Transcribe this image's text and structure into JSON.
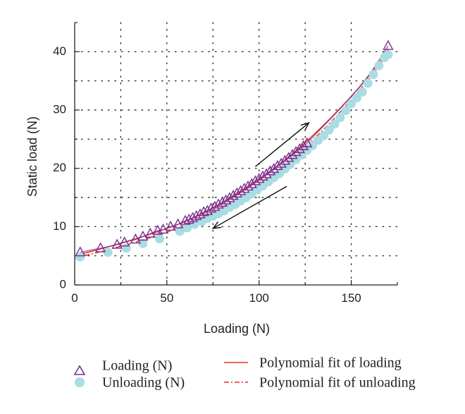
{
  "chart_data": {
    "type": "scatter",
    "xlabel": "Loading (N)",
    "ylabel": "Static load (N)",
    "xlim": [
      0,
      175
    ],
    "ylim": [
      0,
      45
    ],
    "x_ticks": [
      0,
      50,
      100,
      150
    ],
    "y_ticks": [
      0,
      10,
      20,
      30,
      40
    ],
    "grid": true,
    "grid_style": "dotted",
    "legend_position": "bottom",
    "colors": {
      "loading": "#7b2d8e",
      "unloading": "#a9dde3",
      "fit_loading": "#e8321e",
      "fit_unloading": "#e8321e",
      "axis": "#222222",
      "arrow": "#111111"
    },
    "series": [
      {
        "name": "Loading (N)",
        "kind": "scatter",
        "marker": "triangle-open",
        "points": [
          [
            3,
            5.6
          ],
          [
            14,
            6.3
          ],
          [
            23,
            6.9
          ],
          [
            27,
            7.3
          ],
          [
            33,
            7.8
          ],
          [
            37,
            8.3
          ],
          [
            41,
            8.8
          ],
          [
            45,
            9.3
          ],
          [
            48,
            9.5
          ],
          [
            52,
            10.0
          ],
          [
            56,
            10.4
          ],
          [
            60,
            11.0
          ],
          [
            62,
            11.2
          ],
          [
            64,
            11.5
          ],
          [
            66,
            11.8
          ],
          [
            68,
            12.1
          ],
          [
            70,
            12.5
          ],
          [
            72,
            12.7
          ],
          [
            74,
            13.1
          ],
          [
            76,
            13.4
          ],
          [
            78,
            13.8
          ],
          [
            80,
            14.1
          ],
          [
            82,
            14.5
          ],
          [
            84,
            14.9
          ],
          [
            86,
            15.3
          ],
          [
            88,
            15.7
          ],
          [
            90,
            16.1
          ],
          [
            92,
            16.5
          ],
          [
            94,
            16.9
          ],
          [
            96,
            17.3
          ],
          [
            98,
            17.8
          ],
          [
            100,
            18.2
          ],
          [
            102,
            18.6
          ],
          [
            104,
            19.0
          ],
          [
            106,
            19.5
          ],
          [
            108,
            19.9
          ],
          [
            110,
            20.4
          ],
          [
            112,
            20.8
          ],
          [
            114,
            21.3
          ],
          [
            116,
            21.8
          ],
          [
            118,
            22.3
          ],
          [
            120,
            22.8
          ],
          [
            122,
            23.3
          ],
          [
            124,
            23.8
          ],
          [
            126,
            24.3
          ],
          [
            170,
            41.0
          ]
        ]
      },
      {
        "name": "Unloading (N)",
        "kind": "scatter",
        "marker": "circle-filled",
        "points": [
          [
            3,
            4.8
          ],
          [
            18,
            5.6
          ],
          [
            28,
            6.3
          ],
          [
            37,
            7.1
          ],
          [
            46,
            7.9
          ],
          [
            57,
            9.2
          ],
          [
            61,
            9.8
          ],
          [
            65,
            10.4
          ],
          [
            69,
            10.9
          ],
          [
            72,
            11.4
          ],
          [
            75,
            11.8
          ],
          [
            78,
            12.2
          ],
          [
            81,
            12.7
          ],
          [
            84,
            13.3
          ],
          [
            87,
            13.8
          ],
          [
            90,
            14.4
          ],
          [
            93,
            15.0
          ],
          [
            96,
            15.6
          ],
          [
            99,
            16.3
          ],
          [
            102,
            17.0
          ],
          [
            105,
            17.7
          ],
          [
            108,
            18.4
          ],
          [
            111,
            19.1
          ],
          [
            114,
            19.9
          ],
          [
            117,
            20.7
          ],
          [
            120,
            21.5
          ],
          [
            123,
            22.3
          ],
          [
            126,
            23.1
          ],
          [
            129,
            23.9
          ],
          [
            132,
            24.8
          ],
          [
            135,
            25.6
          ],
          [
            138,
            26.6
          ],
          [
            141,
            27.6
          ],
          [
            144,
            28.7
          ],
          [
            147,
            29.9
          ],
          [
            150,
            31.1
          ],
          [
            153,
            32.1
          ],
          [
            156,
            33.1
          ],
          [
            159,
            34.6
          ],
          [
            162,
            36.1
          ],
          [
            165,
            37.6
          ],
          [
            168,
            39.0
          ],
          [
            170,
            39.5
          ]
        ]
      },
      {
        "name": "Polynomial fit of loading",
        "kind": "line",
        "style": "solid",
        "points": [
          [
            0,
            5.0
          ],
          [
            20,
            6.7
          ],
          [
            40,
            8.6
          ],
          [
            60,
            10.9
          ],
          [
            80,
            14.0
          ],
          [
            100,
            18.0
          ],
          [
            120,
            23.0
          ],
          [
            140,
            29.0
          ],
          [
            160,
            36.0
          ],
          [
            170,
            40.5
          ]
        ]
      },
      {
        "name": "Polynomial fit of unloading",
        "kind": "line",
        "style": "dash-dot",
        "points": [
          [
            0,
            4.6
          ],
          [
            20,
            6.2
          ],
          [
            40,
            8.0
          ],
          [
            60,
            10.3
          ],
          [
            80,
            13.3
          ],
          [
            100,
            17.2
          ],
          [
            120,
            22.2
          ],
          [
            140,
            28.3
          ],
          [
            160,
            35.5
          ],
          [
            170,
            39.8
          ]
        ]
      }
    ],
    "annotations": [
      {
        "type": "arrow",
        "direction": "up-right",
        "from": [
          98,
          20.3
        ],
        "to": [
          127,
          27.8
        ]
      },
      {
        "type": "arrow",
        "direction": "down-left",
        "from": [
          115,
          16.9
        ],
        "to": [
          75,
          9.7
        ]
      }
    ]
  }
}
